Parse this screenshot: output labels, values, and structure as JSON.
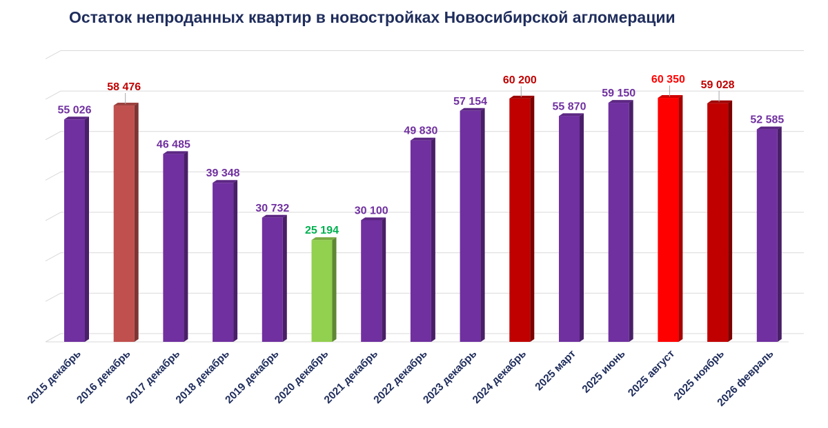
{
  "chart_data": {
    "type": "bar",
    "title": "Остаток непроданных квартир в новостройках Новосибирской агломерации",
    "xlabel": "",
    "ylabel": "",
    "ylim": [
      0,
      70000
    ],
    "grid": true,
    "categories": [
      "2015 декабрь",
      "2016 декабрь",
      "2017 декабрь",
      "2018 декабрь",
      "2019 декабрь",
      "2020 декабрь",
      "2021 декабрь",
      "2022 декабрь",
      "2023 декабрь",
      "2024 декабрь",
      "2025 март",
      "2025 июнь",
      "2025 август",
      "2025 ноябрь",
      "2026 февраль"
    ],
    "values": [
      55026,
      58476,
      46485,
      39348,
      30732,
      25194,
      30100,
      49830,
      57154,
      60200,
      55870,
      59150,
      60350,
      59028,
      52585
    ],
    "labels": [
      "55 026",
      "58 476",
      "46 485",
      "39 348",
      "30 732",
      "25 194",
      "30 100",
      "49 830",
      "57 154",
      "60 200",
      "55 870",
      "59 150",
      "60 350",
      "59 028",
      "52 585"
    ],
    "bar_colors": [
      "#7030a0",
      "#c0504d",
      "#7030a0",
      "#7030a0",
      "#7030a0",
      "#92d050",
      "#7030a0",
      "#7030a0",
      "#7030a0",
      "#c00000",
      "#7030a0",
      "#7030a0",
      "#ff0000",
      "#c00000",
      "#7030a0"
    ],
    "label_colors": [
      "#7030a0",
      "#c00000",
      "#7030a0",
      "#7030a0",
      "#7030a0",
      "#00b050",
      "#7030a0",
      "#7030a0",
      "#7030a0",
      "#c00000",
      "#7030a0",
      "#7030a0",
      "#ff0000",
      "#c00000",
      "#7030a0"
    ]
  }
}
